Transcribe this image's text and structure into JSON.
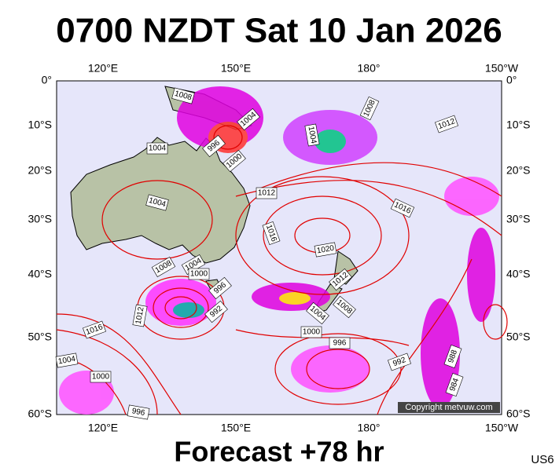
{
  "title": "0700 NZDT Sat 10 Jan 2026",
  "footer": "Forecast +78 hr",
  "model": "US6",
  "copyright": "Copyright metvuw.com",
  "lat_labels": [
    "0°",
    "10°S",
    "20°S",
    "30°S",
    "40°S",
    "50°S",
    "60°S"
  ],
  "lon_labels": [
    "120°E",
    "150°E",
    "180°",
    "150°W"
  ],
  "isobar_labels": [
    "1008",
    "1004",
    "996",
    "1000",
    "1004",
    "1004",
    "1008",
    "1004",
    "1012",
    "1012",
    "1016",
    "1016",
    "1020",
    "1012",
    "1008",
    "1004",
    "1000",
    "996",
    "992",
    "1008",
    "1004",
    "1012",
    "1016",
    "1000",
    "996",
    "992",
    "988",
    "984",
    "1004",
    "1000",
    "996"
  ]
}
